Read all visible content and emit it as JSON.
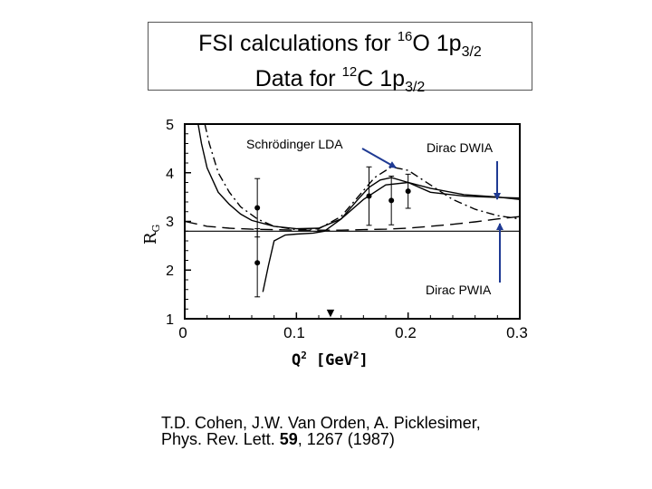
{
  "title": {
    "line1_prefix": "FSI calculations for ",
    "line1_sup": "16",
    "line1_mid": "O 1p",
    "line1_sub": "3/2",
    "line2_prefix": "Data for ",
    "line2_sup": "12",
    "line2_mid": "C  1p",
    "line2_sub": "3/2"
  },
  "citation": {
    "line1": "T.D. Cohen, J.W. Van Orden, A. Picklesimer,",
    "line2_prefix": "Phys. Rev. Lett. ",
    "line2_volume": "59",
    "line2_suffix": ", 1267 (1987)"
  },
  "chart_data": {
    "type": "line",
    "xlabel_main": "Q",
    "xlabel_sup": "2",
    "xlabel_unit": "[GeV",
    "xlabel_unit_sup": "2",
    "xlabel_unit_end": "]",
    "ylabel_main": "R",
    "ylabel_sub": "G",
    "xlim": [
      0,
      0.3
    ],
    "ylim": [
      1,
      5
    ],
    "x_ticks": [
      0,
      0.1,
      0.2,
      0.3
    ],
    "x_tick_labels": [
      "0",
      "0.1",
      "0.2",
      "0.3"
    ],
    "y_ticks": [
      1,
      2,
      3,
      4,
      5
    ],
    "y_tick_labels": [
      "1",
      "2",
      "3",
      "4",
      "5"
    ],
    "series": [
      {
        "name": "Schrödinger LDA",
        "style": "solid",
        "x": [
          0.07,
          0.075,
          0.08,
          0.09,
          0.1,
          0.115,
          0.125,
          0.14,
          0.155,
          0.165,
          0.175,
          0.185,
          0.2,
          0.22,
          0.25,
          0.27,
          0.3
        ],
        "y": [
          1.55,
          2.1,
          2.6,
          2.72,
          2.74,
          2.76,
          2.8,
          3.05,
          3.45,
          3.7,
          3.85,
          3.9,
          3.8,
          3.6,
          3.52,
          3.5,
          3.48
        ]
      },
      {
        "name": "Dirac DWIA",
        "style": "dash-dot",
        "x": [
          0.018,
          0.022,
          0.03,
          0.04,
          0.05,
          0.065,
          0.08,
          0.1,
          0.12,
          0.14,
          0.155,
          0.17,
          0.185,
          0.2,
          0.22,
          0.24,
          0.26,
          0.28,
          0.3
        ],
        "y": [
          5.0,
          4.6,
          4.0,
          3.6,
          3.3,
          3.05,
          2.9,
          2.83,
          2.85,
          3.1,
          3.5,
          3.9,
          4.12,
          4.05,
          3.75,
          3.45,
          3.25,
          3.12,
          3.05
        ]
      },
      {
        "name": "",
        "style": "solid",
        "x": [
          0.012,
          0.015,
          0.02,
          0.03,
          0.04,
          0.05,
          0.06,
          0.08,
          0.1,
          0.12,
          0.14,
          0.16,
          0.18,
          0.2,
          0.22,
          0.25,
          0.28,
          0.3
        ],
        "y": [
          5.0,
          4.6,
          4.1,
          3.6,
          3.35,
          3.15,
          3.02,
          2.9,
          2.85,
          2.86,
          3.05,
          3.45,
          3.75,
          3.8,
          3.68,
          3.55,
          3.5,
          3.45
        ]
      },
      {
        "name": "",
        "style": "long-dash",
        "x": [
          0,
          0.02,
          0.04,
          0.06,
          0.08,
          0.1,
          0.12,
          0.14,
          0.16,
          0.18,
          0.2,
          0.22,
          0.24,
          0.26,
          0.28,
          0.3
        ],
        "y": [
          3.0,
          2.9,
          2.86,
          2.84,
          2.83,
          2.82,
          2.82,
          2.82,
          2.83,
          2.84,
          2.86,
          2.9,
          2.94,
          2.99,
          3.05,
          3.1
        ]
      },
      {
        "name": "Dirac PWIA",
        "style": "solid-flat",
        "x": [
          0,
          0.3
        ],
        "y": [
          2.8,
          2.8
        ]
      }
    ],
    "data_points": [
      {
        "x": 0.065,
        "y": 3.28,
        "err": 0.6
      },
      {
        "x": 0.065,
        "y": 2.15,
        "err": 0.7
      },
      {
        "x": 0.165,
        "y": 3.52,
        "err": 0.6
      },
      {
        "x": 0.185,
        "y": 3.43,
        "err": 0.5
      },
      {
        "x": 0.2,
        "y": 3.62,
        "err": 0.35
      }
    ],
    "annotations": [
      {
        "text": "Schrödinger LDA"
      },
      {
        "text": "Dirac DWIA"
      },
      {
        "text": "Dirac PWIA"
      }
    ]
  }
}
